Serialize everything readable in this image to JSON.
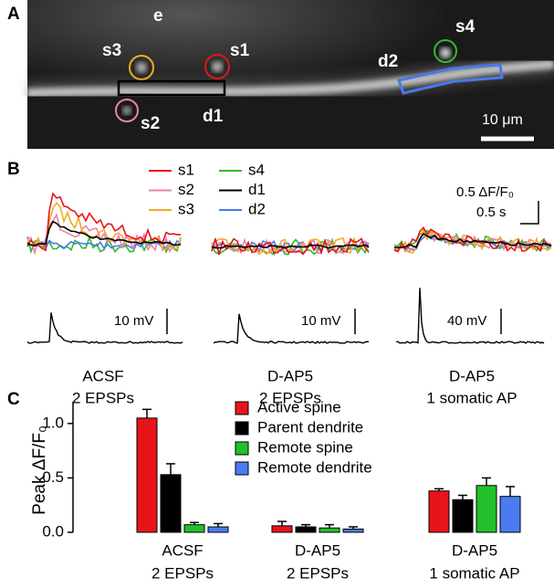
{
  "panel_a": {
    "label": "A",
    "annotations": [
      "e",
      "s3",
      "s1",
      "s2",
      "d1",
      "s4",
      "d2"
    ],
    "scale_bar": "10 μm"
  },
  "panel_b": {
    "label": "B",
    "legend": [
      {
        "name": "s1",
        "color": "#e3161d"
      },
      {
        "name": "s2",
        "color": "#ec82ad"
      },
      {
        "name": "s3",
        "color": "#f2ab22"
      },
      {
        "name": "s4",
        "color": "#2dbd2b"
      },
      {
        "name": "d1",
        "color": "#000000"
      },
      {
        "name": "d2",
        "color": "#4a78ea"
      }
    ],
    "scale_fluor": "0.5 ΔF/F₀",
    "scale_time": "0.5 s",
    "scale_voltage": [
      "10 mV",
      "10 mV",
      "40 mV"
    ],
    "conditions": [
      [
        "ACSF",
        "2 EPSPs"
      ],
      [
        "D-AP5",
        "2 EPSPs"
      ],
      [
        "D-AP5",
        "1 somatic AP"
      ]
    ]
  },
  "chart_data": {
    "type": "bar",
    "panel_label": "C",
    "ylabel": "Peak ΔF/F₀",
    "categories": [
      [
        "ACSF",
        "2 EPSPs"
      ],
      [
        "D-AP5",
        "2 EPSPs"
      ],
      [
        "D-AP5",
        "1 somatic AP"
      ]
    ],
    "series": [
      {
        "name": "Active spine",
        "color": "#e8141b",
        "values": [
          1.05,
          0.06,
          0.38
        ],
        "errors": [
          0.08,
          0.04,
          0.02
        ]
      },
      {
        "name": "Parent dendrite",
        "color": "#000000",
        "values": [
          0.53,
          0.05,
          0.3
        ],
        "errors": [
          0.1,
          0.02,
          0.04
        ]
      },
      {
        "name": "Remote spine",
        "color": "#22c02a",
        "values": [
          0.07,
          0.04,
          0.43
        ],
        "errors": [
          0.02,
          0.03,
          0.07
        ]
      },
      {
        "name": "Remote dendrite",
        "color": "#4a7cf0",
        "values": [
          0.05,
          0.03,
          0.33
        ],
        "errors": [
          0.03,
          0.02,
          0.09
        ]
      }
    ],
    "ylim": [
      0,
      1.2
    ],
    "yticks": [
      {
        "value": 0,
        "label": "0.0"
      },
      {
        "value": 0.5,
        "label": "0.5"
      },
      {
        "value": 1,
        "label": "1.0"
      }
    ]
  }
}
